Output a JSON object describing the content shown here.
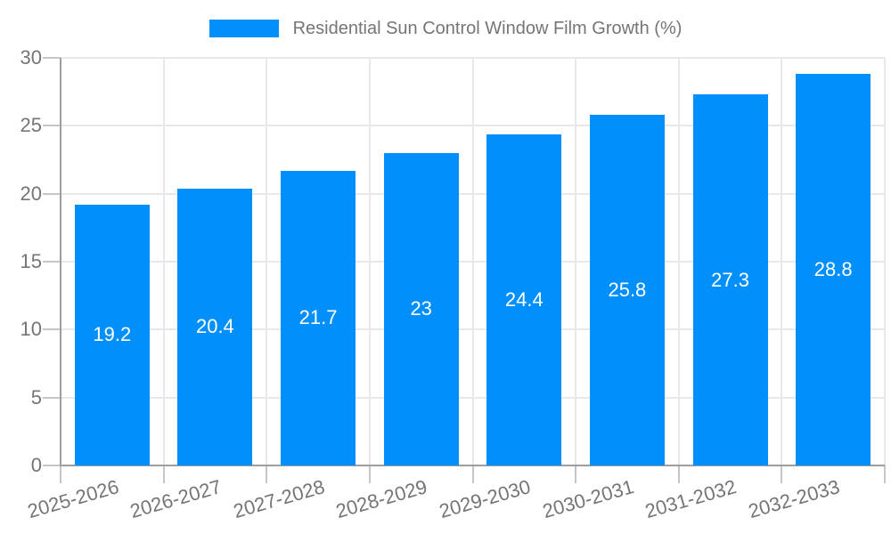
{
  "legend": {
    "label": "Residential Sun Control Window Film Growth (%)"
  },
  "chart_data": {
    "type": "bar",
    "title": "Residential Sun Control Window Film Growth (%)",
    "series_name": "Residential Sun Control Window Film Growth (%)",
    "categories": [
      "2025-2026",
      "2026-2027",
      "2027-2028",
      "2028-2029",
      "2029-2030",
      "2030-2031",
      "2031-2032",
      "2032-2033"
    ],
    "values": [
      19.2,
      20.4,
      21.7,
      23,
      24.4,
      25.8,
      27.3,
      28.8
    ],
    "value_labels": [
      "19.2",
      "20.4",
      "21.7",
      "23",
      "24.4",
      "25.8",
      "27.3",
      "28.8"
    ],
    "xlabel": "",
    "ylabel": "",
    "ylim": [
      0,
      30
    ],
    "yticks": [
      0,
      5,
      10,
      15,
      20,
      25,
      30
    ],
    "grid": true,
    "legend_position": "top"
  },
  "colors": {
    "bar": "#008FFB",
    "value_label": "#ffffff",
    "axis_label": "#757575",
    "legend_label": "#757575",
    "gridline": "#e8e8e8",
    "axis_line": "#9e9e9e",
    "tick": "#c6c6c6",
    "background": "#ffffff"
  }
}
